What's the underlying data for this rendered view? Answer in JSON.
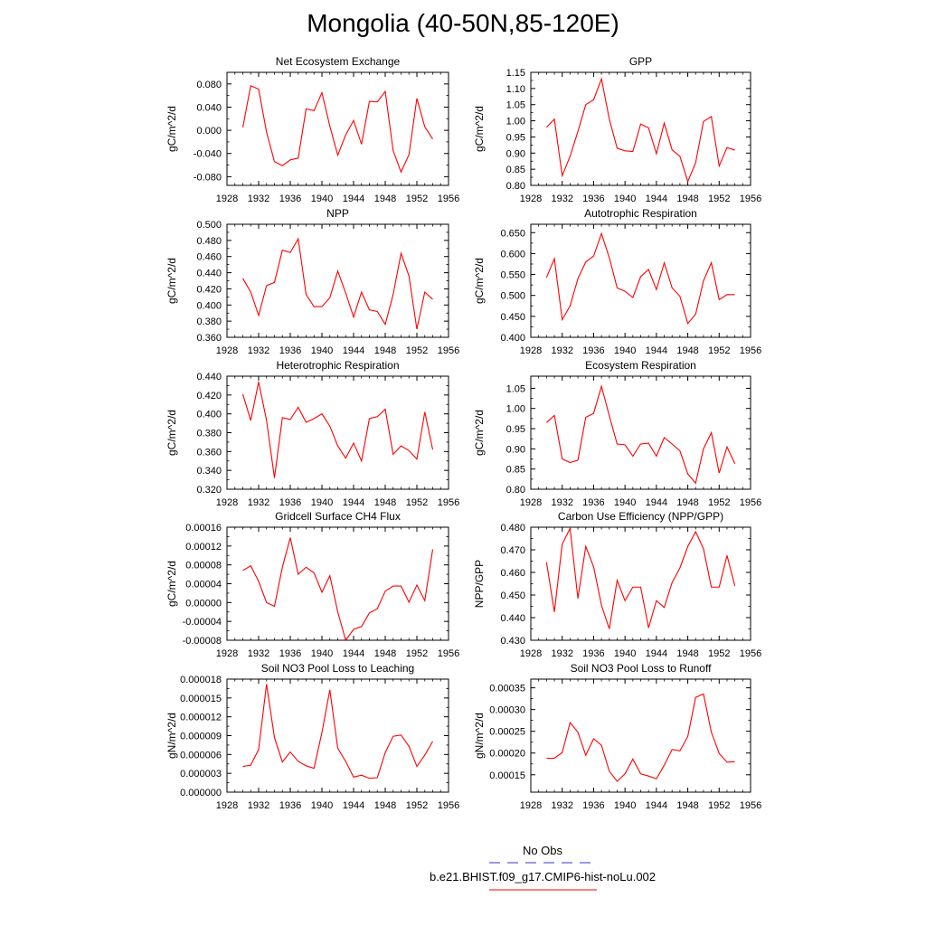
{
  "title": "Mongolia (40-50N,85-120E)",
  "colors": {
    "series": "#ff0000",
    "obs": "#3333cc",
    "axis": "#000000"
  },
  "legend": {
    "obs_label": "No Obs",
    "model_label": "b.e21.BHIST.f09_g17.CMIP6-hist-noLu.002"
  },
  "chart_data": [
    {
      "type": "line",
      "title": "Net Ecosystem Exchange",
      "ylabel": "gC/m^2/d",
      "xlim": [
        1928,
        1956
      ],
      "xticks": [
        "1928",
        "1932",
        "1936",
        "1940",
        "1944",
        "1948",
        "1952",
        "1956"
      ],
      "ylim": [
        -0.095,
        0.1
      ],
      "yticks": [
        -0.08,
        -0.04,
        0.0,
        0.04,
        0.08
      ],
      "yticklabels": [
        "-0.080",
        "-0.040",
        "0.000",
        "0.040",
        "0.080"
      ],
      "x": [
        1930,
        1931,
        1932,
        1933,
        1934,
        1935,
        1936,
        1937,
        1938,
        1939,
        1940,
        1941,
        1942,
        1943,
        1944,
        1945,
        1946,
        1947,
        1948,
        1949,
        1950,
        1951,
        1952,
        1953,
        1954
      ],
      "values": [
        0.005,
        0.077,
        0.071,
        -0.003,
        -0.054,
        -0.061,
        -0.051,
        -0.048,
        0.037,
        0.034,
        0.065,
        0.007,
        -0.043,
        -0.008,
        0.017,
        -0.024,
        0.05,
        0.049,
        0.067,
        -0.035,
        -0.072,
        -0.042,
        0.055,
        0.006,
        -0.015
      ]
    },
    {
      "type": "line",
      "title": "GPP",
      "ylabel": "gC/m^2/d",
      "xlim": [
        1928,
        1956
      ],
      "xticks": [
        "1928",
        "1932",
        "1936",
        "1940",
        "1944",
        "1948",
        "1952",
        "1956"
      ],
      "ylim": [
        0.8,
        1.15
      ],
      "yticks": [
        0.8,
        0.85,
        0.9,
        0.95,
        1.0,
        1.05,
        1.1,
        1.15
      ],
      "yticklabels": [
        "0.80",
        "0.85",
        "0.90",
        "0.95",
        "1.00",
        "1.05",
        "1.10",
        "1.15"
      ],
      "x": [
        1930,
        1931,
        1932,
        1933,
        1934,
        1935,
        1936,
        1937,
        1938,
        1939,
        1940,
        1941,
        1942,
        1943,
        1944,
        1945,
        1946,
        1947,
        1948,
        1949,
        1950,
        1951,
        1952,
        1953,
        1954
      ],
      "values": [
        0.98,
        1.005,
        0.83,
        0.89,
        0.967,
        1.05,
        1.065,
        1.13,
        1.005,
        0.915,
        0.907,
        0.905,
        0.99,
        0.978,
        0.898,
        0.993,
        0.91,
        0.89,
        0.812,
        0.87,
        0.998,
        1.013,
        0.86,
        0.917,
        0.909
      ]
    },
    {
      "type": "line",
      "title": "NPP",
      "ylabel": "gC/m^2/d",
      "xlim": [
        1928,
        1956
      ],
      "xticks": [
        "1928",
        "1932",
        "1936",
        "1940",
        "1944",
        "1948",
        "1952",
        "1956"
      ],
      "ylim": [
        0.36,
        0.5
      ],
      "yticks": [
        0.36,
        0.38,
        0.4,
        0.42,
        0.44,
        0.46,
        0.48,
        0.5
      ],
      "yticklabels": [
        "0.360",
        "0.380",
        "0.400",
        "0.420",
        "0.440",
        "0.460",
        "0.480",
        "0.500"
      ],
      "x": [
        1930,
        1931,
        1932,
        1933,
        1934,
        1935,
        1936,
        1937,
        1938,
        1939,
        1940,
        1941,
        1942,
        1943,
        1944,
        1945,
        1946,
        1947,
        1948,
        1949,
        1950,
        1951,
        1952,
        1953,
        1954
      ],
      "values": [
        0.433,
        0.416,
        0.387,
        0.424,
        0.428,
        0.468,
        0.465,
        0.482,
        0.413,
        0.398,
        0.398,
        0.409,
        0.442,
        0.415,
        0.385,
        0.416,
        0.394,
        0.392,
        0.376,
        0.413,
        0.464,
        0.436,
        0.37,
        0.416,
        0.407
      ]
    },
    {
      "type": "line",
      "title": "Autotrophic Respiration",
      "ylabel": "gC/m^2/d",
      "xlim": [
        1928,
        1956
      ],
      "xticks": [
        "1928",
        "1932",
        "1936",
        "1940",
        "1944",
        "1948",
        "1952",
        "1956"
      ],
      "ylim": [
        0.4,
        0.67
      ],
      "yticks": [
        0.4,
        0.45,
        0.5,
        0.55,
        0.6,
        0.65
      ],
      "yticklabels": [
        "0.400",
        "0.450",
        "0.500",
        "0.550",
        "0.600",
        "0.650"
      ],
      "x": [
        1930,
        1931,
        1932,
        1933,
        1934,
        1935,
        1936,
        1937,
        1938,
        1939,
        1940,
        1941,
        1942,
        1943,
        1944,
        1945,
        1946,
        1947,
        1948,
        1949,
        1950,
        1951,
        1952,
        1953,
        1954
      ],
      "values": [
        0.543,
        0.588,
        0.442,
        0.475,
        0.54,
        0.58,
        0.594,
        0.648,
        0.59,
        0.518,
        0.51,
        0.495,
        0.545,
        0.562,
        0.514,
        0.578,
        0.518,
        0.498,
        0.433,
        0.455,
        0.535,
        0.578,
        0.49,
        0.502,
        0.502
      ]
    },
    {
      "type": "line",
      "title": "Heterotrophic Respiration",
      "ylabel": "gC/m^2/d",
      "xlim": [
        1928,
        1956
      ],
      "xticks": [
        "1928",
        "1932",
        "1936",
        "1940",
        "1944",
        "1948",
        "1952",
        "1956"
      ],
      "ylim": [
        0.32,
        0.44
      ],
      "yticks": [
        0.32,
        0.34,
        0.36,
        0.38,
        0.4,
        0.42,
        0.44
      ],
      "yticklabels": [
        "0.320",
        "0.340",
        "0.360",
        "0.380",
        "0.400",
        "0.420",
        "0.440"
      ],
      "x": [
        1930,
        1931,
        1932,
        1933,
        1934,
        1935,
        1936,
        1937,
        1938,
        1939,
        1940,
        1941,
        1942,
        1943,
        1944,
        1945,
        1946,
        1947,
        1948,
        1949,
        1950,
        1951,
        1952,
        1953,
        1954
      ],
      "values": [
        0.421,
        0.393,
        0.434,
        0.393,
        0.332,
        0.396,
        0.394,
        0.407,
        0.391,
        0.395,
        0.4,
        0.387,
        0.366,
        0.353,
        0.369,
        0.35,
        0.395,
        0.397,
        0.405,
        0.357,
        0.366,
        0.361,
        0.352,
        0.402,
        0.362
      ]
    },
    {
      "type": "line",
      "title": "Ecosystem Respiration",
      "ylabel": "gC/m^2/d",
      "xlim": [
        1928,
        1956
      ],
      "xticks": [
        "1928",
        "1932",
        "1936",
        "1940",
        "1944",
        "1948",
        "1952",
        "1956"
      ],
      "ylim": [
        0.8,
        1.08
      ],
      "yticks": [
        0.8,
        0.85,
        0.9,
        0.95,
        1.0,
        1.05
      ],
      "yticklabels": [
        "0.80",
        "0.85",
        "0.90",
        "0.95",
        "1.00",
        "1.05"
      ],
      "x": [
        1930,
        1931,
        1932,
        1933,
        1934,
        1935,
        1936,
        1937,
        1938,
        1939,
        1940,
        1941,
        1942,
        1943,
        1944,
        1945,
        1946,
        1947,
        1948,
        1949,
        1950,
        1951,
        1952,
        1953,
        1954
      ],
      "values": [
        0.965,
        0.983,
        0.875,
        0.866,
        0.872,
        0.978,
        0.988,
        1.055,
        0.982,
        0.912,
        0.91,
        0.882,
        0.912,
        0.914,
        0.882,
        0.928,
        0.912,
        0.895,
        0.838,
        0.815,
        0.9,
        0.94,
        0.84,
        0.905,
        0.863
      ]
    },
    {
      "type": "line",
      "title": "Gridcell Surface CH4 Flux",
      "ylabel": "gC/m^2/d",
      "xlim": [
        1928,
        1956
      ],
      "xticks": [
        "1928",
        "1932",
        "1936",
        "1940",
        "1944",
        "1948",
        "1952",
        "1956"
      ],
      "ylim": [
        -8e-05,
        0.00016
      ],
      "yticks": [
        -8e-05,
        -4e-05,
        0.0,
        4e-05,
        8e-05,
        0.00012,
        0.00016
      ],
      "yticklabels": [
        "-0.00008",
        "-0.00004",
        "0.00000",
        "0.00004",
        "0.00008",
        "0.00012",
        "0.00016"
      ],
      "x": [
        1930,
        1931,
        1932,
        1933,
        1934,
        1935,
        1936,
        1937,
        1938,
        1939,
        1940,
        1941,
        1942,
        1943,
        1944,
        1945,
        1946,
        1947,
        1948,
        1949,
        1950,
        1951,
        1952,
        1953,
        1954
      ],
      "values": [
        6.8e-05,
        7.8e-05,
        4.5e-05,
        0.0,
        -8e-06,
        7.5e-05,
        0.000138,
        6e-05,
        7.5e-05,
        6.3e-05,
        2.2e-05,
        5.7e-05,
        -2e-05,
        -8e-05,
        -5.7e-05,
        -5.1e-05,
        -2.2e-05,
        -1.3e-05,
        2.4e-05,
        3.5e-05,
        3.5e-05,
        1e-06,
        3.7e-05,
        4e-06,
        0.000113
      ]
    },
    {
      "type": "line",
      "title": "Carbon Use Efficiency (NPP/GPP)",
      "ylabel": "NPP/GPP",
      "xlim": [
        1928,
        1956
      ],
      "xticks": [
        "1928",
        "1932",
        "1936",
        "1940",
        "1944",
        "1948",
        "1952",
        "1956"
      ],
      "ylim": [
        0.43,
        0.48
      ],
      "yticks": [
        0.43,
        0.44,
        0.45,
        0.46,
        0.47,
        0.48
      ],
      "yticklabels": [
        "0.430",
        "0.440",
        "0.450",
        "0.460",
        "0.470",
        "0.480"
      ],
      "x": [
        1930,
        1931,
        1932,
        1933,
        1934,
        1935,
        1936,
        1937,
        1938,
        1939,
        1940,
        1941,
        1942,
        1943,
        1944,
        1945,
        1946,
        1947,
        1948,
        1949,
        1950,
        1951,
        1952,
        1953,
        1954
      ],
      "values": [
        0.4645,
        0.4425,
        0.4725,
        0.4795,
        0.4485,
        0.4715,
        0.4625,
        0.4455,
        0.435,
        0.4565,
        0.4475,
        0.4535,
        0.4535,
        0.4355,
        0.4475,
        0.4445,
        0.4555,
        0.462,
        0.4715,
        0.478,
        0.4705,
        0.4535,
        0.4535,
        0.4675,
        0.454
      ]
    },
    {
      "type": "line",
      "title": "Soil NO3 Pool Loss to Leaching",
      "ylabel": "gN/m^2/d",
      "xlim": [
        1928,
        1956
      ],
      "xticks": [
        "1928",
        "1932",
        "1936",
        "1940",
        "1944",
        "1948",
        "1952",
        "1956"
      ],
      "ylim": [
        0.0,
        1.8e-05
      ],
      "yticks": [
        0.0,
        3e-06,
        6e-06,
        9e-06,
        1.2e-05,
        1.5e-05,
        1.8e-05
      ],
      "yticklabels": [
        "0.000000",
        "0.000003",
        "0.000006",
        "0.000009",
        "0.000012",
        "0.000015",
        "0.000018"
      ],
      "x": [
        1930,
        1931,
        1932,
        1933,
        1934,
        1935,
        1936,
        1937,
        1938,
        1939,
        1940,
        1941,
        1942,
        1943,
        1944,
        1945,
        1946,
        1947,
        1948,
        1949,
        1950,
        1951,
        1952,
        1953,
        1954
      ],
      "values": [
        4.1e-06,
        4.3e-06,
        6.8e-06,
        1.72e-05,
        8.7e-06,
        4.8e-06,
        6.4e-06,
        4.9e-06,
        4.2e-06,
        3.8e-06,
        9.5e-06,
        1.63e-05,
        7e-06,
        4.9e-06,
        2.4e-06,
        2.7e-06,
        2.2e-06,
        2.3e-06,
        6.3e-06,
        8.9e-06,
        9.1e-06,
        7.3e-06,
        4.1e-06,
        5.9e-06,
        8.1e-06
      ]
    },
    {
      "type": "line",
      "title": "Soil NO3 Pool Loss to Runoff",
      "ylabel": "gN/m^2/d",
      "xlim": [
        1928,
        1956
      ],
      "xticks": [
        "1928",
        "1932",
        "1936",
        "1940",
        "1944",
        "1948",
        "1952",
        "1956"
      ],
      "ylim": [
        0.00011,
        0.00037
      ],
      "yticks": [
        0.00015,
        0.0002,
        0.00025,
        0.0003,
        0.00035
      ],
      "yticklabels": [
        "0.00015",
        "0.00020",
        "0.00025",
        "0.00030",
        "0.00035"
      ],
      "x": [
        1930,
        1931,
        1932,
        1933,
        1934,
        1935,
        1936,
        1937,
        1938,
        1939,
        1940,
        1941,
        1942,
        1943,
        1944,
        1945,
        1946,
        1947,
        1948,
        1949,
        1950,
        1951,
        1952,
        1953,
        1954
      ],
      "values": [
        0.000188,
        0.000188,
        0.000201,
        0.00027,
        0.000248,
        0.000195,
        0.000233,
        0.000218,
        0.000158,
        0.000135,
        0.000152,
        0.000186,
        0.000152,
        0.000147,
        0.000141,
        0.000172,
        0.000208,
        0.000205,
        0.000238,
        0.000328,
        0.000336,
        0.000248,
        0.000199,
        0.000179,
        0.00018
      ]
    }
  ]
}
